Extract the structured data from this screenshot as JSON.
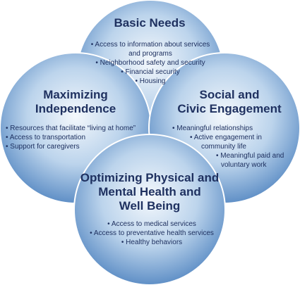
{
  "colors": {
    "circle_center": "#f4f8fc",
    "circle_mid": "#bcd4ec",
    "circle_edge": "#5f8fc6",
    "text": "#1f3160",
    "outline": "#ffffff"
  },
  "circles": {
    "basic_needs": {
      "title": [
        "Basic Needs"
      ],
      "items": [
        "• Access to information about services",
        "and programs",
        "• Neighborhood safety and security",
        "• Financial security",
        "• Housing"
      ]
    },
    "maximizing_independence": {
      "title": [
        "Maximizing",
        "Independence"
      ],
      "items": [
        "• Resources that facilitate “living at home”",
        "• Access to transportation",
        "• Support for caregivers"
      ]
    },
    "social_civic": {
      "title": [
        "Social and",
        "Civic Engagement"
      ],
      "items": [
        "• Meaningful relationships",
        "• Active engagement in",
        "community life",
        "• Meaningful paid and",
        "voluntary work"
      ]
    },
    "health": {
      "title": [
        "Optimizing Physical and",
        "Mental Health and",
        "Well Being"
      ],
      "items": [
        "• Access to medical services",
        "• Access to preventative health services",
        "• Healthy behaviors"
      ]
    }
  }
}
